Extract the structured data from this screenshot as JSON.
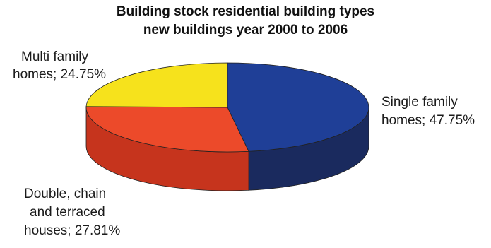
{
  "chart_data": {
    "type": "pie",
    "style": "3d",
    "title_line1": "Building stock residential building types",
    "title_line2": "new buildings year 2000 to 2006",
    "slices": [
      {
        "name": "Single family",
        "label_line1": "Single family",
        "label_line2": "homes; 47.75%",
        "value": 47.75,
        "color": "#1f3f97",
        "side_color": "#1a2a5e"
      },
      {
        "name": "Double, chain and terraced houses",
        "label_line1": "Double, chain",
        "label_line2": "and terraced",
        "label_line3": "houses; 27.81%",
        "value": 27.81,
        "color": "#ec4a2a",
        "side_color": "#c6341d"
      },
      {
        "name": "Multi family homes",
        "label_line1": "Multi family",
        "label_line2": "homes; 24.75%",
        "value": 24.75,
        "color": "#f6e21c",
        "side_color": "#c9b61a"
      }
    ]
  }
}
